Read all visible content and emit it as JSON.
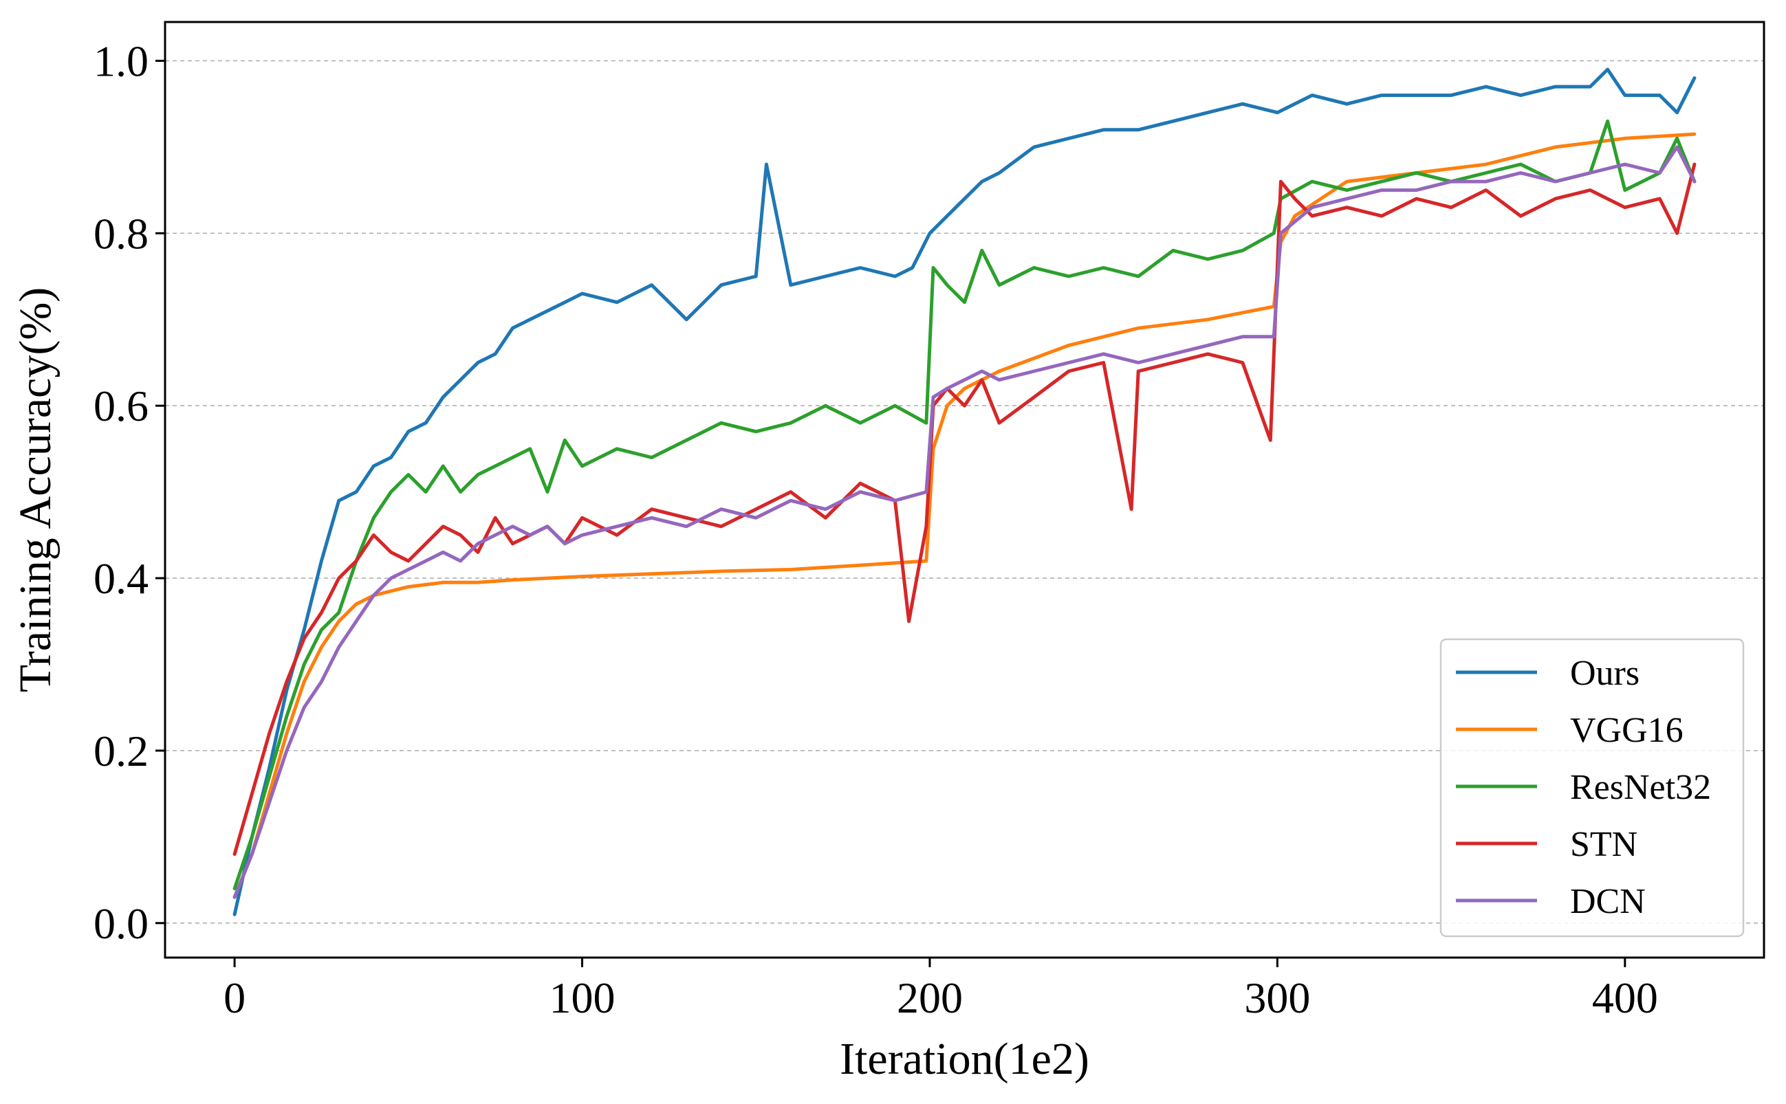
{
  "chart_data": {
    "type": "line",
    "title": "",
    "xlabel": "Iteration(1e2)",
    "ylabel": "Training Accuracy(%)",
    "xlim": [
      -20,
      440
    ],
    "ylim": [
      -0.04,
      1.045
    ],
    "xticks": [
      0,
      100,
      200,
      300,
      400
    ],
    "xtick_labels": [
      "0",
      "100",
      "200",
      "300",
      "400"
    ],
    "yticks": [
      0.0,
      0.2,
      0.4,
      0.6,
      0.8,
      1.0
    ],
    "ytick_labels": [
      "0.0",
      "0.2",
      "0.4",
      "0.6",
      "0.8",
      "1.0"
    ],
    "grid": "horizontal dashed",
    "legend_position": "lower-right",
    "series": [
      {
        "name": "Ours",
        "color": "#1f77b4",
        "x": [
          0,
          5,
          10,
          15,
          20,
          25,
          30,
          35,
          40,
          45,
          50,
          55,
          60,
          65,
          70,
          75,
          80,
          85,
          90,
          95,
          100,
          110,
          120,
          130,
          140,
          150,
          153,
          160,
          170,
          180,
          190,
          195,
          200,
          205,
          210,
          215,
          220,
          230,
          240,
          250,
          260,
          270,
          280,
          290,
          300,
          310,
          320,
          330,
          340,
          350,
          360,
          370,
          380,
          390,
          395,
          400,
          410,
          415,
          420
        ],
        "y": [
          0.01,
          0.1,
          0.18,
          0.27,
          0.34,
          0.42,
          0.49,
          0.5,
          0.53,
          0.54,
          0.57,
          0.58,
          0.61,
          0.63,
          0.65,
          0.66,
          0.69,
          0.7,
          0.71,
          0.72,
          0.73,
          0.72,
          0.74,
          0.7,
          0.74,
          0.75,
          0.88,
          0.74,
          0.75,
          0.76,
          0.75,
          0.76,
          0.8,
          0.82,
          0.84,
          0.86,
          0.87,
          0.9,
          0.91,
          0.92,
          0.92,
          0.93,
          0.94,
          0.95,
          0.94,
          0.96,
          0.95,
          0.96,
          0.96,
          0.96,
          0.97,
          0.96,
          0.97,
          0.97,
          0.99,
          0.96,
          0.96,
          0.94,
          0.98
        ]
      },
      {
        "name": "VGG16",
        "color": "#ff7f0e",
        "x": [
          0,
          5,
          10,
          15,
          20,
          25,
          30,
          35,
          40,
          50,
          60,
          70,
          80,
          90,
          100,
          120,
          140,
          160,
          180,
          199,
          201,
          205,
          210,
          220,
          240,
          260,
          280,
          299,
          301,
          305,
          320,
          340,
          360,
          380,
          400,
          420
        ],
        "y": [
          0.03,
          0.08,
          0.15,
          0.22,
          0.28,
          0.32,
          0.35,
          0.37,
          0.38,
          0.39,
          0.395,
          0.395,
          0.398,
          0.4,
          0.402,
          0.405,
          0.408,
          0.41,
          0.415,
          0.42,
          0.55,
          0.6,
          0.62,
          0.64,
          0.67,
          0.69,
          0.7,
          0.715,
          0.79,
          0.82,
          0.86,
          0.87,
          0.88,
          0.9,
          0.91,
          0.915
        ]
      },
      {
        "name": "ResNet32",
        "color": "#2ca02c",
        "x": [
          0,
          5,
          10,
          15,
          20,
          25,
          30,
          35,
          40,
          45,
          50,
          55,
          60,
          65,
          70,
          75,
          80,
          85,
          90,
          95,
          100,
          110,
          120,
          130,
          140,
          150,
          160,
          170,
          180,
          190,
          199,
          201,
          205,
          210,
          215,
          220,
          230,
          240,
          250,
          260,
          270,
          280,
          290,
          299,
          301,
          310,
          320,
          330,
          340,
          350,
          360,
          370,
          380,
          390,
          395,
          400,
          410,
          415,
          420
        ],
        "y": [
          0.04,
          0.1,
          0.17,
          0.24,
          0.3,
          0.34,
          0.36,
          0.42,
          0.47,
          0.5,
          0.52,
          0.5,
          0.53,
          0.5,
          0.52,
          0.53,
          0.54,
          0.55,
          0.5,
          0.56,
          0.53,
          0.55,
          0.54,
          0.56,
          0.58,
          0.57,
          0.58,
          0.6,
          0.58,
          0.6,
          0.58,
          0.76,
          0.74,
          0.72,
          0.78,
          0.74,
          0.76,
          0.75,
          0.76,
          0.75,
          0.78,
          0.77,
          0.78,
          0.8,
          0.84,
          0.86,
          0.85,
          0.86,
          0.87,
          0.86,
          0.87,
          0.88,
          0.86,
          0.87,
          0.93,
          0.85,
          0.87,
          0.91,
          0.86
        ]
      },
      {
        "name": "STN",
        "color": "#d62728",
        "x": [
          0,
          5,
          10,
          15,
          20,
          25,
          30,
          35,
          40,
          45,
          50,
          55,
          60,
          65,
          70,
          75,
          80,
          85,
          90,
          95,
          100,
          110,
          120,
          130,
          140,
          150,
          160,
          170,
          180,
          190,
          194,
          199,
          201,
          205,
          210,
          215,
          220,
          230,
          240,
          250,
          258,
          260,
          270,
          280,
          290,
          298,
          301,
          305,
          310,
          320,
          330,
          340,
          350,
          360,
          370,
          380,
          390,
          400,
          410,
          415,
          420
        ],
        "y": [
          0.08,
          0.15,
          0.22,
          0.28,
          0.33,
          0.36,
          0.4,
          0.42,
          0.45,
          0.43,
          0.42,
          0.44,
          0.46,
          0.45,
          0.43,
          0.47,
          0.44,
          0.45,
          0.46,
          0.44,
          0.47,
          0.45,
          0.48,
          0.47,
          0.46,
          0.48,
          0.5,
          0.47,
          0.51,
          0.49,
          0.35,
          0.46,
          0.6,
          0.62,
          0.6,
          0.63,
          0.58,
          0.61,
          0.64,
          0.65,
          0.48,
          0.64,
          0.65,
          0.66,
          0.65,
          0.56,
          0.86,
          0.84,
          0.82,
          0.83,
          0.82,
          0.84,
          0.83,
          0.85,
          0.82,
          0.84,
          0.85,
          0.83,
          0.84,
          0.8,
          0.88
        ]
      },
      {
        "name": "DCN",
        "color": "#9467bd",
        "x": [
          0,
          5,
          10,
          15,
          20,
          25,
          30,
          35,
          40,
          45,
          50,
          55,
          60,
          65,
          70,
          75,
          80,
          85,
          90,
          95,
          100,
          110,
          120,
          130,
          140,
          150,
          160,
          170,
          180,
          190,
          199,
          201,
          205,
          210,
          215,
          220,
          230,
          240,
          250,
          260,
          270,
          280,
          290,
          299,
          301,
          310,
          320,
          330,
          340,
          350,
          360,
          370,
          380,
          390,
          400,
          410,
          415,
          420
        ],
        "y": [
          0.03,
          0.08,
          0.14,
          0.2,
          0.25,
          0.28,
          0.32,
          0.35,
          0.38,
          0.4,
          0.41,
          0.42,
          0.43,
          0.42,
          0.44,
          0.45,
          0.46,
          0.45,
          0.46,
          0.44,
          0.45,
          0.46,
          0.47,
          0.46,
          0.48,
          0.47,
          0.49,
          0.48,
          0.5,
          0.49,
          0.5,
          0.61,
          0.62,
          0.63,
          0.64,
          0.63,
          0.64,
          0.65,
          0.66,
          0.65,
          0.66,
          0.67,
          0.68,
          0.68,
          0.8,
          0.83,
          0.84,
          0.85,
          0.85,
          0.86,
          0.86,
          0.87,
          0.86,
          0.87,
          0.88,
          0.87,
          0.9,
          0.86
        ]
      }
    ]
  }
}
